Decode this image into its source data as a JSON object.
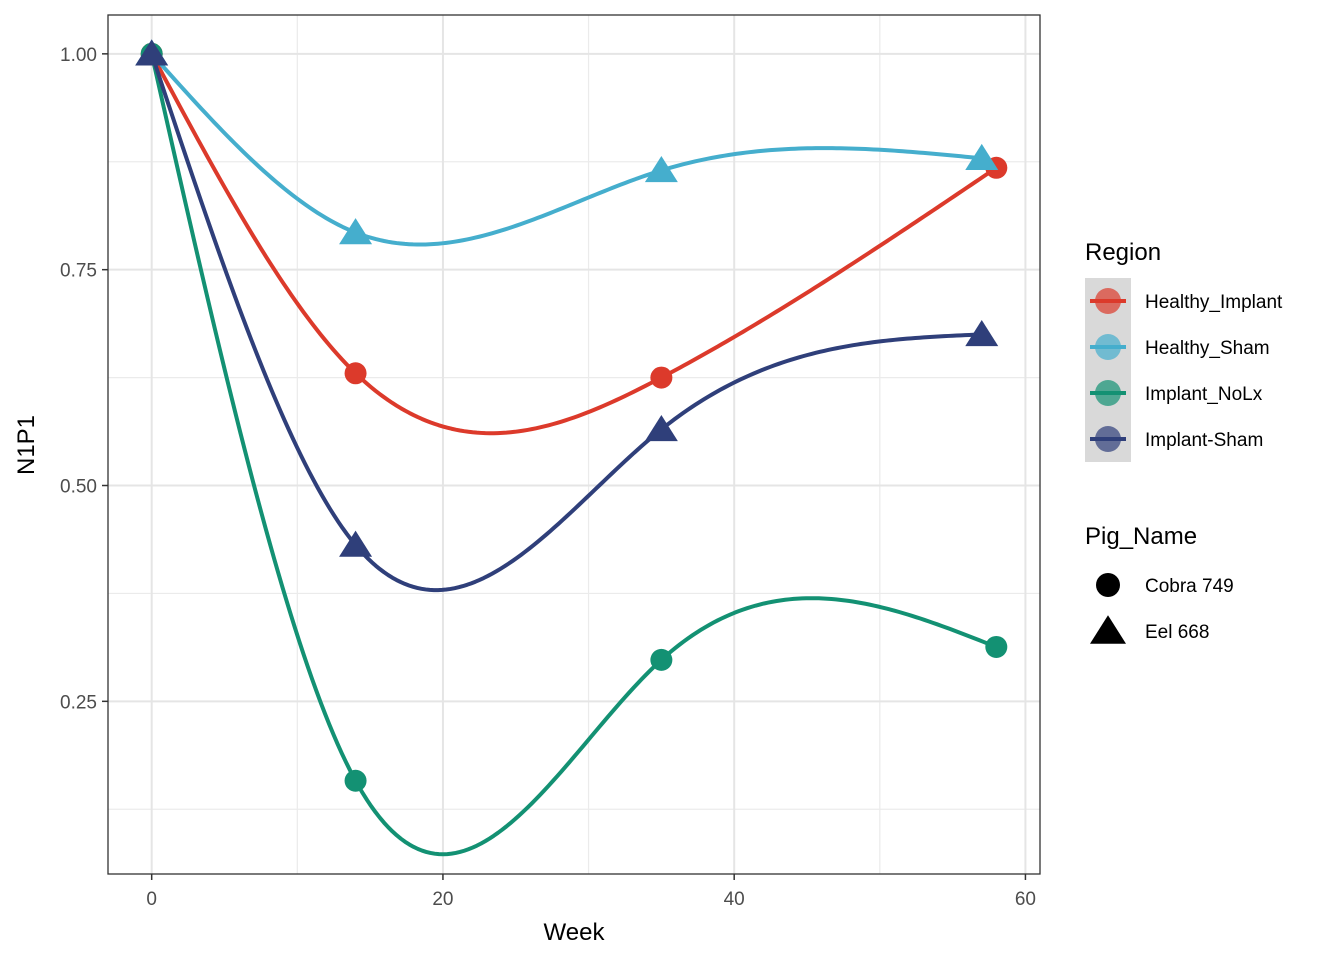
{
  "chart_data": {
    "type": "line",
    "title": "",
    "xlabel": "Week",
    "ylabel": "N1P1",
    "xlim": [
      -3,
      61
    ],
    "ylim": [
      0.05,
      1.045
    ],
    "x_ticks": [
      0,
      20,
      40,
      60
    ],
    "x_tick_labels": [
      "0",
      "20",
      "40",
      "60"
    ],
    "y_ticks": [
      0.25,
      0.5,
      0.75,
      1.0
    ],
    "y_tick_labels": [
      "0.25",
      "0.50",
      "0.75",
      "1.00"
    ],
    "grid": true,
    "smoothing": "spline",
    "series": [
      {
        "name": "Healthy_Implant",
        "color": "#DC3A2B",
        "shape": "circle",
        "pig": "Cobra 749",
        "x": [
          0,
          14,
          35,
          58
        ],
        "y": [
          1.0,
          0.63,
          0.625,
          0.868
        ]
      },
      {
        "name": "Healthy_Sham",
        "color": "#45AECD",
        "shape": "triangle",
        "pig": "Eel 668",
        "x": [
          0,
          14,
          35,
          57
        ],
        "y": [
          1.0,
          0.793,
          0.865,
          0.879
        ]
      },
      {
        "name": "Implant_NoLx",
        "color": "#139173",
        "shape": "circle",
        "pig": "Cobra 749",
        "x": [
          0,
          14,
          35,
          58
        ],
        "y": [
          1.0,
          0.158,
          0.298,
          0.313
        ]
      },
      {
        "name": "Implant-Sham",
        "color": "#2F3F7A",
        "shape": "triangle",
        "pig": "Eel 668",
        "x": [
          0,
          14,
          35,
          57
        ],
        "y": [
          1.0,
          0.431,
          0.565,
          0.675
        ]
      }
    ],
    "legends": [
      {
        "title": "Region",
        "placement": "right",
        "entries": [
          "Healthy_Implant",
          "Healthy_Sham",
          "Implant_NoLx",
          "Implant-Sham"
        ]
      },
      {
        "title": "Pig_Name",
        "placement": "right",
        "entries": [
          {
            "label": "Cobra 749",
            "shape": "circle"
          },
          {
            "label": "Eel 668",
            "shape": "triangle"
          }
        ]
      }
    ]
  }
}
